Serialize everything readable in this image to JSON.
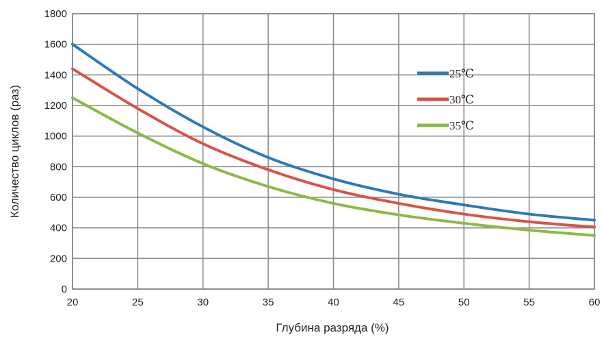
{
  "chart_data": {
    "type": "line",
    "title": "",
    "xlabel": "Глубина разряда (%)",
    "ylabel": "Количество циклов (раз)",
    "xlim": [
      20,
      60
    ],
    "ylim": [
      0,
      1800
    ],
    "xticks": [
      20,
      25,
      30,
      35,
      40,
      45,
      50,
      55,
      60
    ],
    "yticks": [
      0,
      200,
      400,
      600,
      800,
      1000,
      1200,
      1400,
      1600,
      1800
    ],
    "grid": true,
    "legend_position": "top-right",
    "x": [
      20,
      25,
      30,
      35,
      40,
      45,
      50,
      55,
      60
    ],
    "series": [
      {
        "name": "25℃",
        "color": "#2e7ab8",
        "values": [
          1600,
          1310,
          1060,
          860,
          720,
          620,
          550,
          490,
          450
        ]
      },
      {
        "name": "30℃",
        "color": "#d9534a",
        "values": [
          1440,
          1180,
          950,
          780,
          650,
          560,
          490,
          440,
          405
        ]
      },
      {
        "name": "35℃",
        "color": "#8cba45",
        "values": [
          1250,
          1020,
          820,
          670,
          560,
          485,
          430,
          385,
          350
        ]
      }
    ]
  }
}
